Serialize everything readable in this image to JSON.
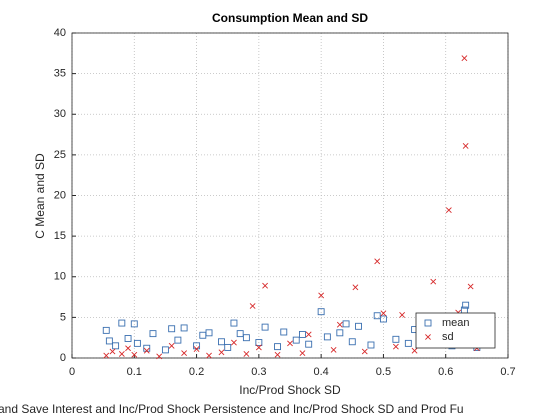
{
  "chart_data": {
    "type": "scatter",
    "title": "Consumption Mean and SD",
    "xlabel": "Inc/Prod Shock SD",
    "ylabel": "C Mean and SD",
    "subtitle": "and Save Interest and Inc/Prod Shock Persistence and Inc/Prod Shock SD and Prod Fu",
    "xlim": [
      0,
      0.7
    ],
    "xticks": [
      0,
      0.1,
      0.2,
      0.3,
      0.4,
      0.5,
      0.6,
      0.7
    ],
    "ylim": [
      0,
      40
    ],
    "yticks": [
      0,
      5,
      10,
      15,
      20,
      25,
      30,
      35,
      40
    ],
    "grid": true,
    "legend": "southeast",
    "series": [
      {
        "name": "mean",
        "color": "#3a6fb0",
        "marker": "square",
        "x": [
          0.055,
          0.06,
          0.07,
          0.08,
          0.09,
          0.1,
          0.105,
          0.12,
          0.13,
          0.15,
          0.16,
          0.17,
          0.18,
          0.2,
          0.21,
          0.22,
          0.24,
          0.25,
          0.26,
          0.27,
          0.28,
          0.3,
          0.31,
          0.33,
          0.34,
          0.36,
          0.37,
          0.38,
          0.4,
          0.41,
          0.43,
          0.44,
          0.45,
          0.46,
          0.48,
          0.49,
          0.5,
          0.52,
          0.54,
          0.55,
          0.57,
          0.58,
          0.6,
          0.61,
          0.62,
          0.63,
          0.632,
          0.635,
          0.64,
          0.65
        ],
        "values": [
          3.4,
          2.1,
          1.5,
          4.3,
          2.4,
          4.2,
          1.8,
          1.2,
          3.0,
          1.0,
          3.6,
          2.2,
          3.7,
          1.5,
          2.8,
          3.1,
          2.0,
          1.3,
          4.3,
          3.0,
          2.5,
          1.9,
          3.8,
          1.4,
          3.2,
          2.2,
          2.9,
          1.7,
          5.7,
          2.6,
          3.1,
          4.2,
          2.0,
          3.9,
          1.6,
          5.2,
          4.8,
          2.3,
          1.8,
          3.5,
          2.7,
          4.1,
          3.3,
          1.5,
          2.4,
          5.9,
          6.5,
          4.5,
          3.0,
          1.3
        ]
      },
      {
        "name": "sd",
        "color": "#d62728",
        "marker": "x",
        "x": [
          0.055,
          0.065,
          0.08,
          0.09,
          0.1,
          0.12,
          0.14,
          0.16,
          0.18,
          0.2,
          0.22,
          0.24,
          0.26,
          0.28,
          0.29,
          0.3,
          0.31,
          0.33,
          0.35,
          0.37,
          0.38,
          0.4,
          0.42,
          0.43,
          0.455,
          0.47,
          0.49,
          0.5,
          0.52,
          0.53,
          0.55,
          0.56,
          0.58,
          0.6,
          0.605,
          0.62,
          0.63,
          0.632,
          0.64,
          0.65
        ],
        "values": [
          0.3,
          0.8,
          0.5,
          1.2,
          0.4,
          0.9,
          0.2,
          1.5,
          0.6,
          1.1,
          0.3,
          0.7,
          1.9,
          0.5,
          6.4,
          1.3,
          8.9,
          0.4,
          1.8,
          0.6,
          2.9,
          7.7,
          1.0,
          4.1,
          8.7,
          0.8,
          11.9,
          5.5,
          1.4,
          5.3,
          0.9,
          5.2,
          9.4,
          2.2,
          18.2,
          5.6,
          36.9,
          26.1,
          8.8,
          1.2
        ]
      }
    ]
  }
}
